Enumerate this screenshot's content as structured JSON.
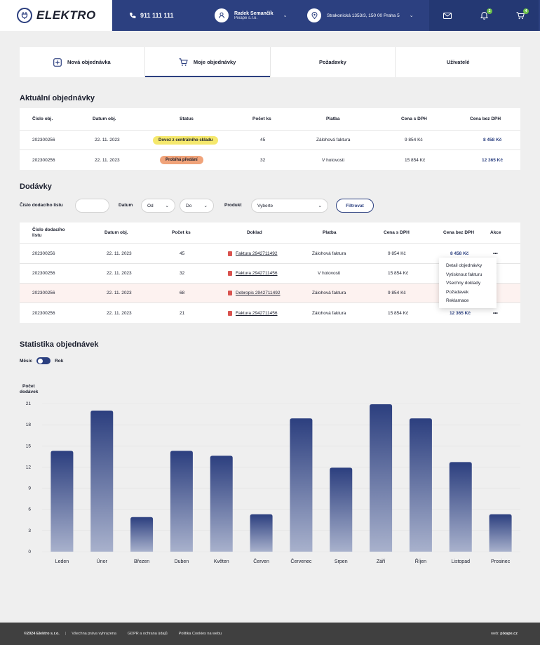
{
  "header": {
    "logo": "ELEKTRO",
    "phone": "911 111 111",
    "user_name": "Radek Semančík",
    "user_company": "Pixape s.r.o.",
    "location": "Strakonická 1353/3, 150 00 Praha 5",
    "notifications_count": "2",
    "cart_count": "4"
  },
  "tabs": [
    {
      "label": "Nová objednávka"
    },
    {
      "label": "Moje objednávky"
    },
    {
      "label": "Požadavky"
    },
    {
      "label": "Uživatelé"
    }
  ],
  "current_orders": {
    "title": "Aktuální objednávky",
    "headers": [
      "Číslo obj.",
      "Datum obj.",
      "Status",
      "Počet ks",
      "Platba",
      "Cena s DPH",
      "Cena bez DPH"
    ],
    "rows": [
      {
        "number": "202300256",
        "date": "22. 11. 2023",
        "status": "Dovoz z centrálního skladu",
        "qty": "45",
        "payment": "Zálohová faktura",
        "price_vat": "9 854 Kč",
        "price_novat": "8 458 Kč"
      },
      {
        "number": "202300256",
        "date": "22. 11. 2023",
        "status": "Probíhá předání",
        "qty": "32",
        "payment": "V hotovosti",
        "price_vat": "15 854 Kč",
        "price_novat": "12 365 Kč"
      }
    ],
    "status_colors": [
      "#f5e86c",
      "#f0a37a"
    ]
  },
  "deliveries": {
    "title": "Dodávky",
    "filters": {
      "delivery_note_label": "Číslo dodacího listu",
      "date_label": "Datum",
      "from": "Od",
      "to": "Do",
      "product_label": "Produkt",
      "product_placeholder": "Vyberte",
      "filter_button": "Filtrovat"
    },
    "headers": [
      "Číslo dodacího listu",
      "Datum obj.",
      "Počet ks",
      "Doklad",
      "Platba",
      "Cena s DPH",
      "Cena bez DPH",
      "Akce"
    ],
    "rows": [
      {
        "number": "202300256",
        "date": "22. 11. 2023",
        "qty": "45",
        "doc": "Faktura 2942711492",
        "payment": "Zálohová faktura",
        "price_vat": "9 854 Kč",
        "price_novat": "8 458 Kč"
      },
      {
        "number": "202300256",
        "date": "22. 11. 2023",
        "qty": "32",
        "doc": "Faktura 2942711456",
        "payment": "V hotovosti",
        "price_vat": "15 854 Kč",
        "price_novat": ""
      },
      {
        "number": "202300256",
        "date": "22. 11. 2023",
        "qty": "68",
        "doc": "Dobropis 2942711492",
        "payment": "Zálohová faktura",
        "price_vat": "9 854 Kč",
        "price_novat": ""
      },
      {
        "number": "202300256",
        "date": "22. 11. 2023",
        "qty": "21",
        "doc": "Faktura 2942711456",
        "payment": "Zálohová faktura",
        "price_vat": "15 854 Kč",
        "price_novat": "12 365 Kč"
      }
    ],
    "action_menu": [
      "Detail objednávky",
      "Vytisknout fakturu",
      "Všechny doklady",
      "Požadavek",
      "Reklamace"
    ]
  },
  "stats": {
    "title": "Statistika objednávek",
    "toggle_left": "Měsíc",
    "toggle_right": "Rok"
  },
  "chart_data": {
    "type": "bar",
    "ylabel": "Počet dodávek",
    "ylim": [
      0,
      21
    ],
    "yticks": [
      0,
      3,
      6,
      9,
      12,
      15,
      18,
      21
    ],
    "categories": [
      "Leden",
      "Únor",
      "Březen",
      "Duben",
      "Květen",
      "Červen",
      "Červenec",
      "Srpen",
      "Září",
      "Říjen",
      "Listopad",
      "Prosinec"
    ],
    "values": [
      14.3,
      20,
      4.9,
      14.3,
      13.6,
      5.3,
      18.9,
      11.9,
      20.9,
      18.9,
      12.7,
      5.3
    ],
    "bar_color_top": "#2c3f7f",
    "bar_color_bottom": "#a8b1cc",
    "grid": true
  },
  "footer": {
    "copyright": "©2024 Elektro s.r.o.",
    "rights": "Všechna práva vyhrazena",
    "gdpr": "GDPR a ochrana údajů",
    "cookies": "Politika Cookies na webu",
    "web_label": "web:",
    "web_value": "pixape.cz"
  }
}
